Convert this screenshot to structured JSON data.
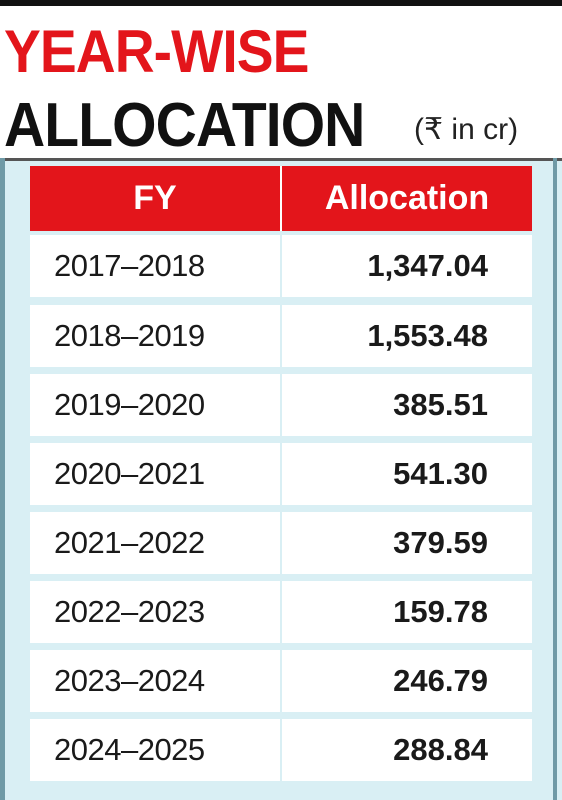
{
  "header": {
    "title_line1": "YEAR-WISE",
    "title_line2": "ALLOCATION",
    "unit": "(₹ in cr)"
  },
  "colors": {
    "accent_red": "#e3151b",
    "panel_blue": "#d9eff4",
    "text_dark": "#111111"
  },
  "chart_data": {
    "type": "table",
    "title": "YEAR-WISE ALLOCATION",
    "unit": "(₹ in cr)",
    "columns": [
      "FY",
      "Allocation"
    ],
    "rows": [
      [
        "2017–2018",
        "1,347.04"
      ],
      [
        "2018–2019",
        "1,553.48"
      ],
      [
        "2019–2020",
        "385.51"
      ],
      [
        "2020–2021",
        "541.30"
      ],
      [
        "2021–2022",
        "379.59"
      ],
      [
        "2022–2023",
        "159.78"
      ],
      [
        "2023–2024",
        "246.79"
      ],
      [
        "2024–2025",
        "288.84"
      ]
    ]
  }
}
